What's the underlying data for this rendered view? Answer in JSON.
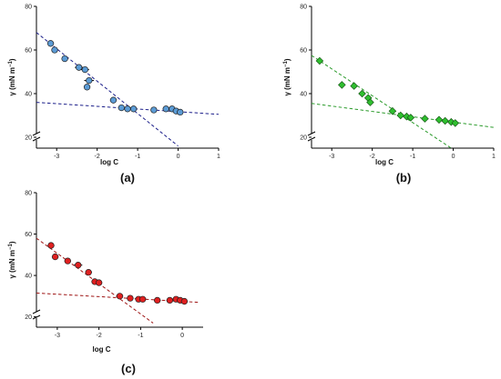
{
  "chart_data": [
    {
      "type": "scatter",
      "panel_label": "(a)",
      "xlabel": "log C",
      "ylabel_main": "γ (mN m",
      "ylabel_sup": "−1",
      "ylabel_close": ")",
      "xlim": [
        -3.5,
        1
      ],
      "ylim": [
        15,
        80
      ],
      "x_ticks": [
        "-3",
        "-2",
        "-1",
        "0",
        "1"
      ],
      "y_ticks": [
        "20",
        "40",
        "60",
        "80"
      ],
      "axis_break": true,
      "marker": "circle",
      "color": "#5b9bd5",
      "line_color": "#1c1f8a",
      "points": [
        {
          "x": -3.15,
          "y": 63,
          "err": 0.08
        },
        {
          "x": -3.05,
          "y": 60,
          "err": 0.08
        },
        {
          "x": -2.8,
          "y": 56,
          "err": 0.08
        },
        {
          "x": -2.45,
          "y": 52,
          "err": 0.1
        },
        {
          "x": -2.3,
          "y": 51,
          "err": 0.1
        },
        {
          "x": -2.2,
          "y": 46,
          "err": 0.12
        },
        {
          "x": -2.25,
          "y": 43,
          "err": 0.08
        },
        {
          "x": -1.6,
          "y": 37,
          "err": 0.08
        },
        {
          "x": -1.4,
          "y": 33.5,
          "err": 0.08
        },
        {
          "x": -1.25,
          "y": 33,
          "err": 0.08
        },
        {
          "x": -1.1,
          "y": 33,
          "err": 0.08
        },
        {
          "x": -0.6,
          "y": 32.5,
          "err": 0.08
        },
        {
          "x": -0.3,
          "y": 33,
          "err": 0.08
        },
        {
          "x": -0.15,
          "y": 33,
          "err": 0.08
        },
        {
          "x": -0.05,
          "y": 32,
          "err": 0.08
        },
        {
          "x": 0.05,
          "y": 31.5,
          "err": 0.08
        }
      ],
      "fit_lines": [
        {
          "x1": -3.5,
          "y1": 68,
          "x2": 0,
          "y2": 16
        },
        {
          "x1": -3.5,
          "y1": 36,
          "x2": 1,
          "y2": 30.5
        }
      ]
    },
    {
      "type": "scatter",
      "panel_label": "(b)",
      "xlabel": "log C",
      "ylabel_main": "γ (mN m",
      "ylabel_sup": "−1",
      "ylabel_close": ")",
      "xlim": [
        -3.5,
        1
      ],
      "ylim": [
        15,
        80
      ],
      "x_ticks": [
        "-3",
        "-2",
        "-1",
        "0",
        "1"
      ],
      "y_ticks": [
        "20",
        "40",
        "60",
        "80"
      ],
      "axis_break": true,
      "marker": "diamond",
      "color": "#2fbf2f",
      "line_color": "#2a9a2a",
      "points": [
        {
          "x": -3.3,
          "y": 55,
          "err": 0.08
        },
        {
          "x": -2.75,
          "y": 44,
          "err": 0.08
        },
        {
          "x": -2.45,
          "y": 43.5,
          "err": 0.08
        },
        {
          "x": -2.25,
          "y": 40,
          "err": 0.08
        },
        {
          "x": -2.1,
          "y": 38,
          "err": 0.08
        },
        {
          "x": -2.05,
          "y": 36,
          "err": 0.08
        },
        {
          "x": -1.5,
          "y": 32,
          "err": 0.08
        },
        {
          "x": -1.3,
          "y": 30,
          "err": 0.08
        },
        {
          "x": -1.15,
          "y": 29.5,
          "err": 0.08
        },
        {
          "x": -1.05,
          "y": 29,
          "err": 0.08
        },
        {
          "x": -0.7,
          "y": 28.5,
          "err": 0.08
        },
        {
          "x": -0.35,
          "y": 28,
          "err": 0.08
        },
        {
          "x": -0.2,
          "y": 27.5,
          "err": 0.08
        },
        {
          "x": -0.05,
          "y": 27,
          "err": 0.08
        },
        {
          "x": 0.05,
          "y": 26.5,
          "err": 0.08
        }
      ],
      "fit_lines": [
        {
          "x1": -3.5,
          "y1": 57.5,
          "x2": -0.05,
          "y2": 15
        },
        {
          "x1": -3.5,
          "y1": 35.5,
          "x2": 1,
          "y2": 24.5
        }
      ]
    },
    {
      "type": "scatter",
      "panel_label": "(c)",
      "xlabel": "log C",
      "ylabel_main": "γ (mN m",
      "ylabel_sup": "−1",
      "ylabel_close": ")",
      "xlim": [
        -3.5,
        0.5
      ],
      "ylim": [
        15,
        80
      ],
      "x_ticks": [
        "-3",
        "-2",
        "-1",
        "0"
      ],
      "y_ticks": [
        "20",
        "40",
        "60",
        "80"
      ],
      "axis_break": true,
      "marker": "circle",
      "color": "#e02020",
      "line_color": "#9e1515",
      "points": [
        {
          "x": -3.15,
          "y": 54.5,
          "err": 0.08
        },
        {
          "x": -3.05,
          "y": 49,
          "err": 0.08
        },
        {
          "x": -2.75,
          "y": 47,
          "err": 0.08
        },
        {
          "x": -2.5,
          "y": 45,
          "err": 0.1
        },
        {
          "x": -2.25,
          "y": 41.5,
          "err": 0.08
        },
        {
          "x": -2.1,
          "y": 37,
          "err": 0.08
        },
        {
          "x": -2.0,
          "y": 36.5,
          "err": 0.08
        },
        {
          "x": -1.5,
          "y": 30,
          "err": 0.08
        },
        {
          "x": -1.25,
          "y": 29,
          "err": 0.08
        },
        {
          "x": -1.05,
          "y": 28.5,
          "err": 0.08
        },
        {
          "x": -0.95,
          "y": 28.5,
          "err": 0.08
        },
        {
          "x": -0.6,
          "y": 28,
          "err": 0.08
        },
        {
          "x": -0.3,
          "y": 28,
          "err": 0.08
        },
        {
          "x": -0.15,
          "y": 28.5,
          "err": 0.08
        },
        {
          "x": -0.05,
          "y": 28,
          "err": 0.08
        },
        {
          "x": 0.05,
          "y": 27.5,
          "err": 0.08
        }
      ],
      "fit_lines": [
        {
          "x1": -3.5,
          "y1": 58,
          "x2": -0.7,
          "y2": 17
        },
        {
          "x1": -3.5,
          "y1": 31.5,
          "x2": 0.4,
          "y2": 27
        }
      ]
    }
  ]
}
